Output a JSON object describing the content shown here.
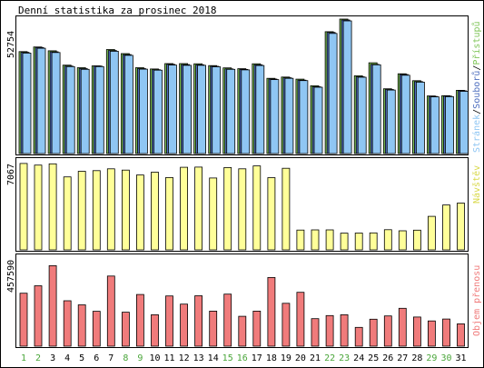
{
  "chart_data": {
    "type": "bar",
    "title": "Denní statistika za prosinec 2018",
    "categories": [
      "1",
      "2",
      "3",
      "4",
      "5",
      "6",
      "7",
      "8",
      "9",
      "10",
      "11",
      "12",
      "13",
      "14",
      "15",
      "16",
      "17",
      "18",
      "19",
      "20",
      "21",
      "22",
      "23",
      "24",
      "25",
      "26",
      "27",
      "28",
      "29",
      "30",
      "31"
    ],
    "weekend_days": [
      "1",
      "2",
      "8",
      "9",
      "15",
      "16",
      "22",
      "23",
      "29",
      "30"
    ],
    "colors": {
      "background": "#ffffff",
      "frame": "#000000",
      "hits": "#80c65a",
      "files": "#4f6fbf",
      "pages": "#8fc6f3",
      "visits": "#ffff99",
      "traffic": "#f07b7b",
      "weekday_label": "#000000",
      "weekend_label": "#4aa63a",
      "label_pristupu": "#80c65a",
      "label_souboru": "#4f6fbf",
      "label_stranek": "#8fc6f3",
      "label_navstev": "#d9d94a",
      "label_prenosu": "#f07b7b"
    },
    "panels": [
      {
        "id": "top",
        "ymax_label": "52754",
        "ylim": [
          0,
          52754
        ],
        "series": [
          {
            "name": "Přístupů",
            "values": [
              40000,
              41800,
              40300,
              34700,
              33700,
              34400,
              40800,
              39200,
              33700,
              33200,
              35300,
              35300,
              35200,
              34500,
              33600,
              33300,
              35200,
              29500,
              30000,
              29200,
              26600,
              47800,
              52754,
              30500,
              35600,
              25400,
              31300,
              28600,
              22600,
              22700,
              24800
            ]
          },
          {
            "name": "Souborů",
            "values": [
              39000,
              40900,
              39200,
              33600,
              32600,
              33600,
              39700,
              38100,
              32600,
              32200,
              34300,
              34200,
              34100,
              33500,
              32500,
              32300,
              34100,
              28500,
              29000,
              28100,
              25500,
              46800,
              51700,
              29400,
              34300,
              24400,
              30300,
              27500,
              21700,
              21800,
              23900
            ]
          },
          {
            "name": "Stránek",
            "values": [
              38000,
              39900,
              38200,
              32700,
              31600,
              32700,
              38700,
              37100,
              31700,
              31300,
              33300,
              33200,
              33200,
              32600,
              31600,
              31400,
              33100,
              27600,
              28100,
              27200,
              24600,
              45700,
              50600,
              28500,
              33400,
              23500,
              29300,
              26600,
              20800,
              20900,
              23000
            ]
          }
        ]
      },
      {
        "id": "middle",
        "ymax_label": "7067",
        "ylim": [
          0,
          7067
        ],
        "series": [
          {
            "name": "Návštěv",
            "values": [
              6930,
              6800,
              6900,
              5850,
              6300,
              6350,
              6500,
              6400,
              6000,
              6230,
              5800,
              6620,
              6640,
              5760,
              6600,
              6500,
              6730,
              5790,
              6540,
              1590,
              1600,
              1600,
              1340,
              1350,
              1360,
              1620,
              1530,
              1580,
              2690,
              3600,
              3750
            ]
          }
        ]
      },
      {
        "id": "bottom",
        "ymax_label": "457590",
        "ylim": [
          0,
          457590
        ],
        "series": [
          {
            "name": "Objem přenosu",
            "values": [
              287000,
              327000,
              436000,
              246000,
              224000,
              189000,
              380000,
              184000,
              280000,
              170000,
              272000,
              228000,
              273000,
              190000,
              282000,
              162000,
              190000,
              372000,
              232000,
              292000,
              149000,
              166000,
              170000,
              102000,
              146000,
              164000,
              205000,
              158000,
              137000,
              147000,
              121000
            ]
          }
        ]
      }
    ]
  }
}
